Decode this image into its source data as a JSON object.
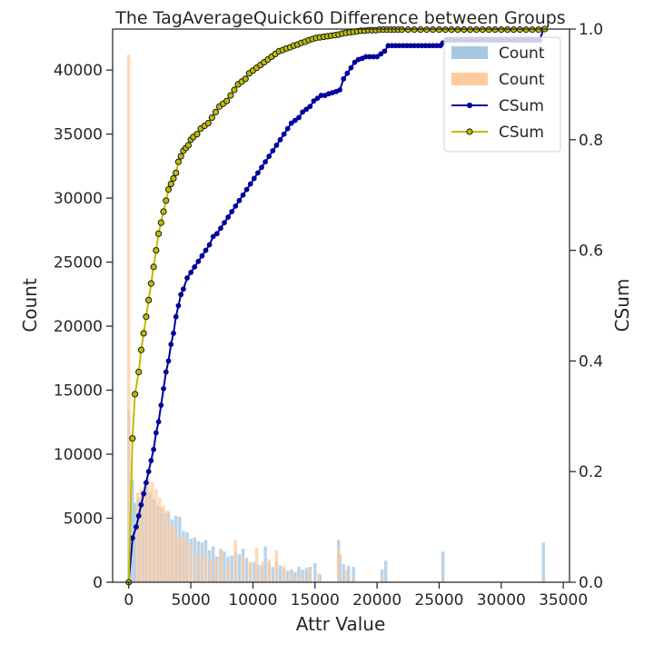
{
  "chart_data": {
    "type": "bar+line",
    "title": "The TagAverageQuick60 Difference between Groups",
    "xlabel": "Attr Value",
    "ylabel_left": "Count",
    "ylabel_right": "CSum",
    "xlim": [
      -1300,
      35500
    ],
    "ylim_left": [
      0,
      43200
    ],
    "ylim_right": [
      0,
      1.0
    ],
    "x_ticks": [
      0,
      5000,
      10000,
      15000,
      20000,
      25000,
      30000,
      35000
    ],
    "y_ticks_left": [
      0,
      5000,
      10000,
      15000,
      20000,
      25000,
      30000,
      35000,
      40000
    ],
    "y_ticks_right": [
      0.0,
      0.2,
      0.4,
      0.6,
      0.8,
      1.0
    ],
    "grid": false,
    "legend_position": "top-right",
    "legend": [
      {
        "label": "Count",
        "kind": "bar",
        "color": "#a6c8e3"
      },
      {
        "label": "Count",
        "kind": "bar",
        "color": "#ffcb9e"
      },
      {
        "label": "CSum",
        "kind": "line",
        "color": "#00009c"
      },
      {
        "label": "CSum",
        "kind": "line",
        "color": "#bdbd00"
      }
    ],
    "bar_series": [
      {
        "name": "Count",
        "color": "#a6c8e3",
        "x": [
          0,
          300,
          500,
          800,
          1100,
          1400,
          1700,
          2000,
          2300,
          2600,
          2900,
          3200,
          3500,
          3800,
          4100,
          4400,
          4700,
          5000,
          5300,
          5600,
          5900,
          6200,
          6500,
          6800,
          7100,
          7400,
          7700,
          8000,
          8300,
          8600,
          8900,
          9200,
          9500,
          9800,
          10100,
          10400,
          10700,
          11000,
          11300,
          11600,
          11900,
          12200,
          12500,
          12800,
          13100,
          13400,
          13700,
          14000,
          14300,
          14600,
          15000,
          15400,
          16900,
          17000,
          17300,
          17700,
          18100,
          20400,
          20700,
          25300,
          33400
        ],
        "values": [
          13500,
          8000,
          6200,
          6600,
          7000,
          7500,
          7000,
          6500,
          6000,
          5800,
          5400,
          5500,
          4900,
          5200,
          5100,
          4000,
          3900,
          3400,
          3500,
          3200,
          3100,
          3300,
          2500,
          2800,
          2000,
          2600,
          2400,
          2000,
          2100,
          2400,
          2200,
          2600,
          1900,
          1500,
          1600,
          1400,
          1300,
          2800,
          1500,
          1200,
          1600,
          1300,
          1100,
          900,
          1000,
          800,
          1200,
          1000,
          1100,
          1200,
          1500,
          600,
          3300,
          2200,
          1400,
          1300,
          1200,
          1000,
          1700,
          2400,
          3100
        ]
      },
      {
        "name": "Count",
        "color": "#ffcb9e",
        "x": [
          0,
          700,
          1000,
          1300,
          1600,
          1900,
          2200,
          2500,
          2800,
          3100,
          3400,
          3700,
          4000,
          4300,
          4600,
          5000,
          5400,
          5800,
          6200,
          6600,
          7000,
          7500,
          8000,
          8600,
          9200,
          9800,
          10300,
          10800,
          11300,
          11900,
          12500,
          13200,
          13800,
          14500,
          15300,
          16900,
          17500
        ],
        "values": [
          41200,
          7000,
          7300,
          7800,
          8100,
          7800,
          7300,
          6600,
          6000,
          5600,
          4600,
          4300,
          3700,
          3500,
          3300,
          2900,
          2200,
          2000,
          2100,
          1600,
          1800,
          2500,
          1400,
          3300,
          2000,
          1600,
          2700,
          1600,
          1800,
          2500,
          1300,
          800,
          600,
          1200,
          700,
          2700,
          1000
        ]
      }
    ],
    "line_series": [
      {
        "name": "CSum",
        "color": "#00009c",
        "x": [
          0,
          300,
          600,
          800,
          1000,
          1200,
          1400,
          1600,
          1800,
          2000,
          2200,
          2400,
          2600,
          2800,
          3000,
          3200,
          3400,
          3600,
          3800,
          4000,
          4200,
          4400,
          4700,
          5000,
          5300,
          5600,
          5900,
          6200,
          6500,
          6800,
          7100,
          7400,
          7700,
          8000,
          8300,
          8600,
          8900,
          9200,
          9500,
          9800,
          10100,
          10400,
          10700,
          11000,
          11300,
          11600,
          11900,
          12200,
          12500,
          12800,
          13100,
          13400,
          13700,
          14000,
          14300,
          14600,
          14900,
          15200,
          15500,
          15800,
          16100,
          16400,
          16700,
          17000,
          17300,
          17600,
          17900,
          18200,
          18500,
          18800,
          19100,
          19400,
          19700,
          20000,
          20300,
          20600,
          20900,
          21200,
          21500,
          21800,
          22100,
          22400,
          22700,
          23000,
          23300,
          23600,
          23900,
          24200,
          24500,
          24800,
          25100,
          25300,
          25600,
          25900,
          26200,
          26500,
          26800,
          27100,
          27400,
          27700,
          28000,
          28300,
          28600,
          28900,
          29200,
          29500,
          29800,
          30100,
          30400,
          30700,
          31000,
          31300,
          31600,
          31900,
          32200,
          32500,
          32800,
          33100,
          33400
        ],
        "values": [
          0.0,
          0.08,
          0.1,
          0.12,
          0.14,
          0.16,
          0.18,
          0.2,
          0.22,
          0.24,
          0.27,
          0.29,
          0.32,
          0.35,
          0.38,
          0.4,
          0.43,
          0.45,
          0.48,
          0.5,
          0.52,
          0.53,
          0.55,
          0.56,
          0.57,
          0.58,
          0.59,
          0.6,
          0.61,
          0.625,
          0.63,
          0.64,
          0.65,
          0.66,
          0.67,
          0.68,
          0.69,
          0.7,
          0.71,
          0.72,
          0.73,
          0.74,
          0.75,
          0.76,
          0.77,
          0.78,
          0.79,
          0.8,
          0.81,
          0.82,
          0.83,
          0.835,
          0.84,
          0.85,
          0.855,
          0.86,
          0.87,
          0.875,
          0.88,
          0.88,
          0.883,
          0.885,
          0.887,
          0.89,
          0.91,
          0.92,
          0.93,
          0.94,
          0.945,
          0.947,
          0.95,
          0.95,
          0.95,
          0.95,
          0.955,
          0.96,
          0.97,
          0.97,
          0.97,
          0.97,
          0.97,
          0.97,
          0.97,
          0.97,
          0.97,
          0.97,
          0.97,
          0.97,
          0.97,
          0.97,
          0.97,
          0.975,
          0.98,
          0.98,
          0.98,
          0.98,
          0.98,
          0.98,
          0.98,
          0.98,
          0.98,
          0.98,
          0.98,
          0.98,
          0.98,
          0.98,
          0.98,
          0.98,
          0.98,
          0.98,
          0.98,
          0.98,
          0.98,
          0.98,
          0.98,
          0.98,
          0.98,
          0.98,
          1.0
        ]
      },
      {
        "name": "CSum",
        "color": "#bdbd00",
        "x": [
          0,
          300,
          500,
          800,
          1000,
          1200,
          1400,
          1600,
          1800,
          2000,
          2200,
          2400,
          2600,
          2800,
          3000,
          3200,
          3400,
          3600,
          3800,
          4000,
          4200,
          4400,
          4600,
          4800,
          5000,
          5200,
          5500,
          5800,
          6100,
          6400,
          6700,
          7000,
          7300,
          7600,
          7900,
          8200,
          8500,
          8800,
          9100,
          9400,
          9700,
          10000,
          10300,
          10600,
          10900,
          11200,
          11500,
          11800,
          12100,
          12400,
          12700,
          13000,
          13300,
          13600,
          13900,
          14200,
          14500,
          14800,
          15100,
          15400,
          15700,
          16000,
          16300,
          16600,
          16900,
          17200,
          17500,
          17800,
          18100,
          18400,
          18700,
          19000,
          19300,
          19600,
          19900,
          20200,
          20500,
          20800,
          21100,
          21400,
          21700,
          22000,
          22500,
          23000,
          23500,
          24000,
          24500,
          25000,
          25500,
          26000,
          26500,
          27000,
          27500,
          28000,
          28500,
          29000,
          29500,
          30000,
          30500,
          31000,
          31500,
          32000,
          32500,
          33000,
          33500
        ],
        "values": [
          0.0,
          0.26,
          0.34,
          0.38,
          0.42,
          0.45,
          0.48,
          0.51,
          0.54,
          0.57,
          0.6,
          0.63,
          0.65,
          0.67,
          0.69,
          0.71,
          0.72,
          0.73,
          0.74,
          0.76,
          0.77,
          0.78,
          0.785,
          0.79,
          0.8,
          0.805,
          0.81,
          0.82,
          0.825,
          0.83,
          0.84,
          0.85,
          0.86,
          0.865,
          0.87,
          0.88,
          0.89,
          0.9,
          0.905,
          0.91,
          0.92,
          0.925,
          0.93,
          0.935,
          0.94,
          0.945,
          0.95,
          0.955,
          0.96,
          0.962,
          0.965,
          0.967,
          0.97,
          0.972,
          0.975,
          0.977,
          0.98,
          0.982,
          0.984,
          0.985,
          0.986,
          0.987,
          0.988,
          0.989,
          0.99,
          0.992,
          0.993,
          0.994,
          0.995,
          0.996,
          0.997,
          0.997,
          0.998,
          0.998,
          0.998,
          0.999,
          0.999,
          0.999,
          0.999,
          0.999,
          0.999,
          0.999,
          0.999,
          0.999,
          0.999,
          0.999,
          0.999,
          0.999,
          0.999,
          0.999,
          0.999,
          0.999,
          0.999,
          0.999,
          0.999,
          0.999,
          0.999,
          0.999,
          0.999,
          0.999,
          0.999,
          0.999,
          0.999,
          0.999,
          1.0
        ]
      }
    ]
  }
}
